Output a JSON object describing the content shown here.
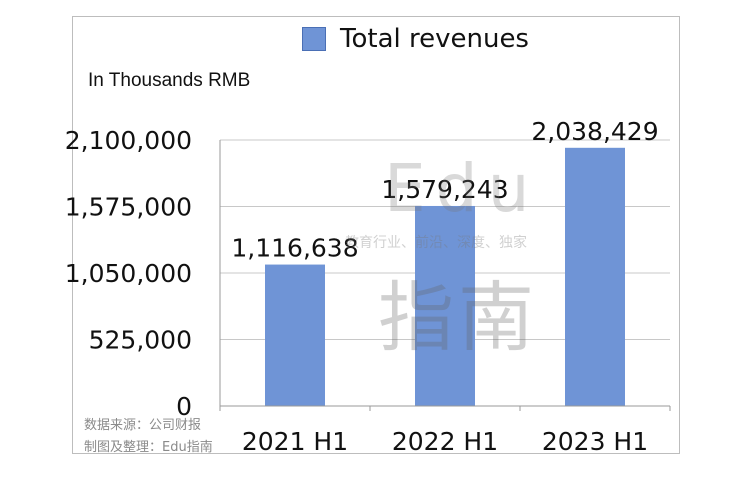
{
  "chart_data": {
    "type": "bar",
    "categories": [
      "2021 H1",
      "2022 H1",
      "2023 H1"
    ],
    "series": [
      {
        "name": "Total revenues",
        "values": [
          1116638,
          1579243,
          2038429
        ]
      }
    ],
    "data_labels": [
      "1,116,638",
      "1,579,243",
      "2,038,429"
    ],
    "y_ticks": [
      0,
      525000,
      1050000,
      1575000,
      2100000
    ],
    "y_tick_labels": [
      "0",
      "525,000",
      "1,050,000",
      "1,575,000",
      "2,100,000"
    ],
    "ylim": [
      0,
      2100000
    ],
    "unit_label": "In Thousands RMB",
    "legend_position": "top",
    "grid": true,
    "bar_color": "#6f94d6"
  },
  "source_line1": "数据来源：公司财报",
  "source_line2": "制图及整理：Edu指南",
  "watermark": {
    "edu": "Edu",
    "tagline": "教育行业、前沿、深度、独家",
    "cn": "指南"
  }
}
